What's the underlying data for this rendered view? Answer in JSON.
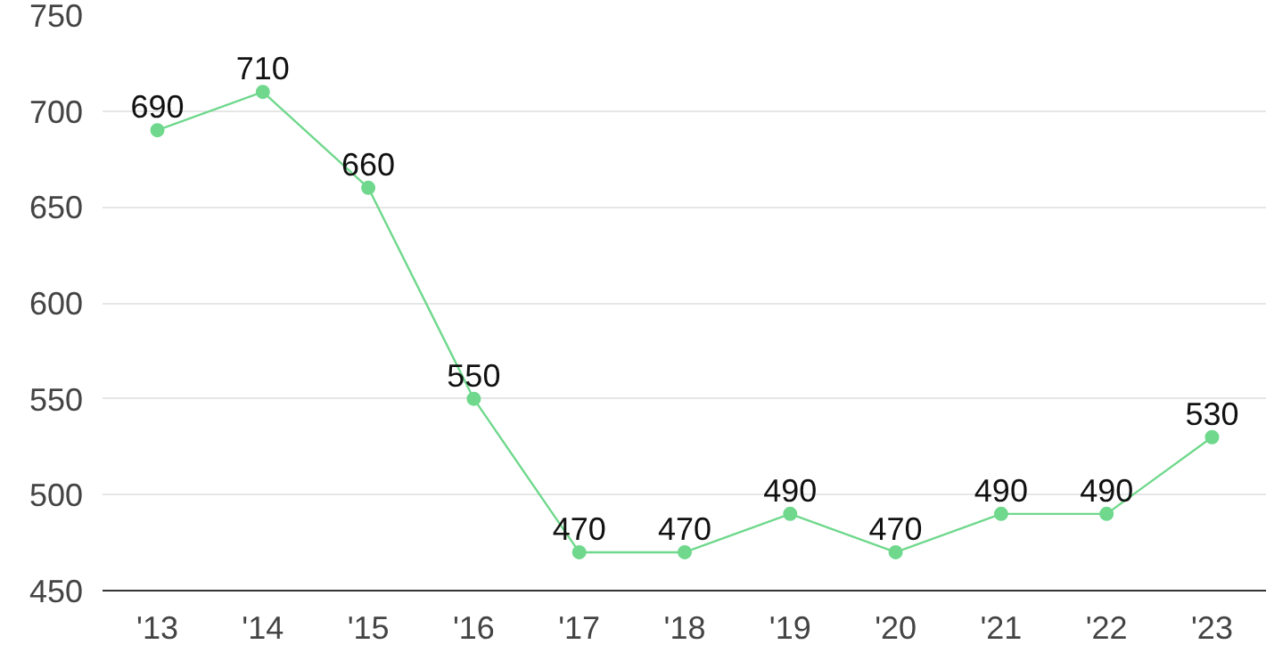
{
  "chart_data": {
    "type": "line",
    "categories": [
      "'13",
      "'14",
      "'15",
      "'16",
      "'17",
      "'18",
      "'19",
      "'20",
      "'21",
      "'22",
      "'23"
    ],
    "series": [
      {
        "color": "#6fd88c",
        "values": [
          690,
          710,
          660,
          550,
          470,
          470,
          490,
          470,
          490,
          490,
          530
        ]
      }
    ],
    "ylim": [
      450,
      750
    ],
    "yticks": [
      450,
      500,
      550,
      600,
      650,
      700,
      750
    ],
    "grid": "y",
    "marker": "circle",
    "data_labels": true
  }
}
